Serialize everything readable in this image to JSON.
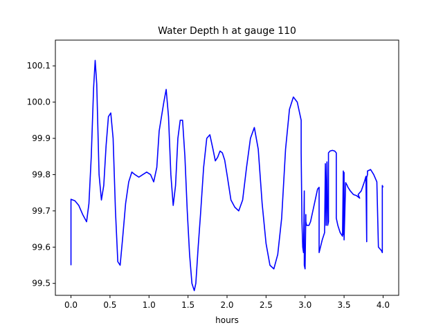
{
  "chart_data": {
    "type": "line",
    "title": "Water Depth h at gauge 110",
    "xlabel": "hours",
    "ylabel": "",
    "xlim": [
      -0.2,
      4.2
    ],
    "ylim": [
      99.467,
      100.171
    ],
    "xticks": [
      0.0,
      0.5,
      1.0,
      1.5,
      2.0,
      2.5,
      3.0,
      3.5,
      4.0
    ],
    "xtick_labels": [
      "0.0",
      "0.5",
      "1.0",
      "1.5",
      "2.0",
      "2.5",
      "3.0",
      "3.5",
      "4.0"
    ],
    "yticks": [
      99.5,
      99.6,
      99.7,
      99.8,
      99.9,
      100.0,
      100.1
    ],
    "ytick_labels": [
      "99.5",
      "99.6",
      "99.7",
      "99.8",
      "99.9",
      "100.0",
      "100.1"
    ],
    "grid": false,
    "series": [
      {
        "color": "#0000ff",
        "x": [
          0.0,
          0.0,
          0.05,
          0.1,
          0.15,
          0.2,
          0.23,
          0.26,
          0.29,
          0.31,
          0.33,
          0.36,
          0.39,
          0.42,
          0.45,
          0.48,
          0.51,
          0.54,
          0.57,
          0.6,
          0.63,
          0.66,
          0.7,
          0.74,
          0.78,
          0.82,
          0.87,
          0.92,
          0.97,
          1.02,
          1.06,
          1.1,
          1.13,
          1.16,
          1.19,
          1.22,
          1.25,
          1.28,
          1.31,
          1.34,
          1.37,
          1.4,
          1.43,
          1.46,
          1.49,
          1.52,
          1.55,
          1.58,
          1.6,
          1.63,
          1.66,
          1.7,
          1.74,
          1.78,
          1.82,
          1.85,
          1.88,
          1.91,
          1.94,
          1.97,
          2.0,
          2.05,
          2.1,
          2.15,
          2.2,
          2.25,
          2.3,
          2.35,
          2.4,
          2.45,
          2.5,
          2.55,
          2.6,
          2.65,
          2.7,
          2.75,
          2.8,
          2.85,
          2.9,
          2.95,
          2.95,
          2.96,
          2.97,
          2.98,
          2.99,
          2.99,
          3.0,
          3.01,
          3.01,
          3.02,
          3.03,
          3.05,
          3.07,
          3.1,
          3.13,
          3.16,
          3.18,
          3.18,
          3.22,
          3.25,
          3.26,
          3.27,
          3.28,
          3.29,
          3.3,
          3.3,
          3.32,
          3.35,
          3.38,
          3.4,
          3.4,
          3.42,
          3.45,
          3.48,
          3.49,
          3.49,
          3.5,
          3.5,
          3.52,
          3.54,
          3.54,
          3.55,
          3.58,
          3.62,
          3.66,
          3.7,
          3.68,
          3.72,
          3.76,
          3.78,
          3.79,
          3.79,
          3.8,
          3.8,
          3.84,
          3.88,
          3.92,
          3.94,
          3.94,
          3.98,
          3.99,
          3.99,
          4.0
        ],
        "y": [
          99.55,
          99.732,
          99.728,
          99.715,
          99.69,
          99.67,
          99.72,
          99.85,
          100.04,
          100.115,
          100.05,
          99.8,
          99.73,
          99.77,
          99.88,
          99.96,
          99.97,
          99.9,
          99.7,
          99.56,
          99.55,
          99.62,
          99.72,
          99.78,
          99.807,
          99.8,
          99.793,
          99.8,
          99.807,
          99.8,
          99.78,
          99.82,
          99.92,
          99.96,
          100.0,
          100.035,
          99.96,
          99.8,
          99.715,
          99.77,
          99.9,
          99.95,
          99.95,
          99.85,
          99.7,
          99.58,
          99.5,
          99.48,
          99.5,
          99.6,
          99.69,
          99.82,
          99.9,
          99.91,
          99.87,
          99.838,
          99.848,
          99.865,
          99.86,
          99.84,
          99.8,
          99.73,
          99.71,
          99.7,
          99.73,
          99.82,
          99.9,
          99.93,
          99.87,
          99.72,
          99.61,
          99.55,
          99.54,
          99.58,
          99.68,
          99.87,
          99.98,
          100.014,
          100.0,
          99.95,
          99.86,
          99.67,
          99.6,
          99.585,
          99.755,
          99.55,
          99.54,
          99.69,
          99.67,
          99.66,
          99.66,
          99.66,
          99.67,
          99.7,
          99.73,
          99.76,
          99.765,
          99.585,
          99.62,
          99.64,
          99.83,
          99.66,
          99.835,
          99.66,
          99.67,
          99.86,
          99.865,
          99.867,
          99.865,
          99.86,
          99.68,
          99.66,
          99.64,
          99.63,
          99.81,
          99.635,
          99.806,
          99.62,
          99.778,
          99.77,
          99.77,
          99.765,
          99.755,
          99.745,
          99.742,
          99.735,
          99.745,
          99.755,
          99.78,
          99.795,
          99.615,
          99.792,
          99.8,
          99.81,
          99.814,
          99.8,
          99.78,
          99.6,
          99.6,
          99.59,
          99.585,
          99.77,
          99.765
        ]
      }
    ]
  }
}
